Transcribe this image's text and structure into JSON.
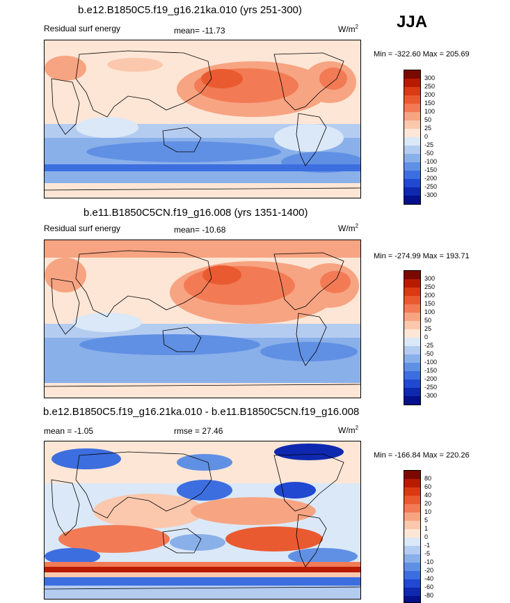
{
  "season": "JJA",
  "units_base": "W/m",
  "units_exp": "2",
  "panels": [
    {
      "title": "b.e12.B1850C5.f19_g16.21ka.010 (yrs 251-300)",
      "variable": "Residual surf energy",
      "mean": "mean= -11.73",
      "minmax": "Min = -322.60 Max = 205.69"
    },
    {
      "title": "b.e11.B1850C5CN.f19_g16.008 (yrs 1351-1400)",
      "variable": "Residual surf energy",
      "mean": "mean= -10.68",
      "minmax": "Min = -274.99 Max = 193.71"
    },
    {
      "title": "b.e12.B1850C5.f19_g16.21ka.010 - b.e11.B1850C5CN.f19_g16.008",
      "mean": "mean =  -1.05",
      "rmse": "rmse =  27.46",
      "minmax": "Min = -166.84 Max = 220.26"
    }
  ],
  "colorbars": {
    "abs": {
      "labels": [
        "300",
        "250",
        "200",
        "150",
        "100",
        "50",
        "25",
        "0",
        "-25",
        "-50",
        "-100",
        "-150",
        "-200",
        "-250",
        "-300"
      ],
      "colors": [
        "#7a0a00",
        "#b81a00",
        "#d93a12",
        "#ea5a30",
        "#f27b55",
        "#f7a482",
        "#fbc8ad",
        "#fde6d6",
        "#dbe8f7",
        "#b5ccf1",
        "#8ab0ea",
        "#6090e4",
        "#3d6ee0",
        "#2148d1",
        "#0e28b0",
        "#05108a"
      ]
    },
    "diff": {
      "labels": [
        "80",
        "60",
        "40",
        "20",
        "10",
        "5",
        "1",
        "0",
        "-1",
        "-5",
        "-10",
        "-20",
        "-40",
        "-60",
        "-80"
      ],
      "colors": [
        "#7a0a00",
        "#b81a00",
        "#d93a12",
        "#ea5a30",
        "#f27b55",
        "#f7a482",
        "#fbc8ad",
        "#fde6d6",
        "#dbe8f7",
        "#b5ccf1",
        "#8ab0ea",
        "#6090e4",
        "#3d6ee0",
        "#2148d1",
        "#0e28b0",
        "#05108a"
      ]
    }
  },
  "chart_data": [
    {
      "type": "heatmap",
      "title": "b.e12.B1850C5.f19_g16.21ka.010 (yrs 251-300)",
      "variable": "Residual surf energy",
      "units": "W/m2",
      "mean": -11.73,
      "min": -322.6,
      "max": 205.69,
      "levels": [
        -300,
        -250,
        -200,
        -150,
        -100,
        -50,
        -25,
        0,
        25,
        50,
        100,
        150,
        200,
        250,
        300
      ]
    },
    {
      "type": "heatmap",
      "title": "b.e11.B1850C5CN.f19_g16.008 (yrs 1351-1400)",
      "variable": "Residual surf energy",
      "units": "W/m2",
      "mean": -10.68,
      "min": -274.99,
      "max": 193.71,
      "levels": [
        -300,
        -250,
        -200,
        -150,
        -100,
        -50,
        -25,
        0,
        25,
        50,
        100,
        150,
        200,
        250,
        300
      ]
    },
    {
      "type": "heatmap",
      "title": "b.e12.B1850C5.f19_g16.21ka.010 - b.e11.B1850C5CN.f19_g16.008",
      "units": "W/m2",
      "mean": -1.05,
      "rmse": 27.46,
      "min": -166.84,
      "max": 220.26,
      "levels": [
        -80,
        -60,
        -40,
        -20,
        -10,
        -5,
        -1,
        0,
        1,
        5,
        10,
        20,
        40,
        60,
        80
      ]
    }
  ]
}
